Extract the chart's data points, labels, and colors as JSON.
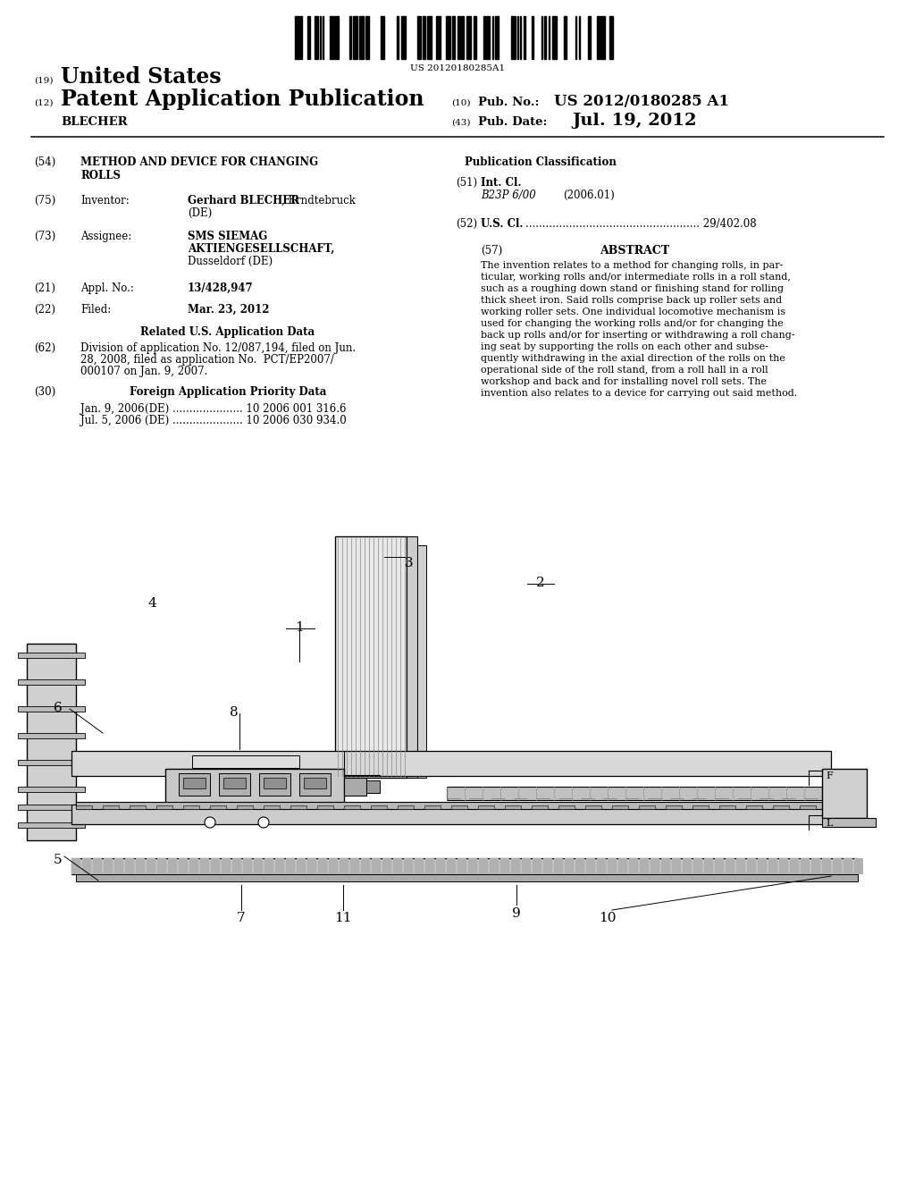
{
  "background_color": "#ffffff",
  "barcode_number": "US 20120180285A1",
  "pub_no": "US 2012/0180285 A1",
  "pub_date": "Jul. 19, 2012",
  "inventor_surname": "BLECHER",
  "abstract_text": "The invention relates to a method for changing rolls, in par-\nticular, working rolls and/or intermediate rolls in a roll stand,\nsuch as a roughing down stand or finishing stand for rolling\nthick sheet iron. Said rolls comprise back up roller sets and\nworking roller sets. One individual locomotive mechanism is\nused for changing the working rolls and/or for changing the\nback up rolls and/or for inserting or withdrawing a roll chang-\ning seat by supporting the rolls on each other and subse-\nquently withdrawing in the axial direction of the rolls on the\noperational side of the roll stand, from a roll hall in a roll\nworkshop and back and for installing novel roll sets. The\ninvention also relates to a device for carrying out said method."
}
